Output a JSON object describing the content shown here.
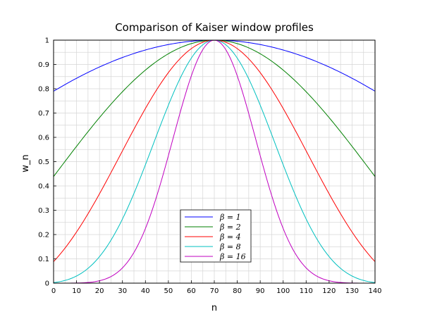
{
  "chart_data": {
    "type": "line",
    "title": "Comparison of Kaiser window profiles",
    "xlabel": "n",
    "ylabel": "w_n",
    "xlim": [
      0,
      140
    ],
    "ylim": [
      0,
      1
    ],
    "x_ticks": [
      "0",
      "10",
      "20",
      "30",
      "40",
      "50",
      "60",
      "70",
      "80",
      "90",
      "100",
      "110",
      "120",
      "130",
      "140"
    ],
    "y_ticks": [
      "0",
      "0.1",
      "0.2",
      "0.3",
      "0.4",
      "0.5",
      "0.6",
      "0.7",
      "0.8",
      "0.9",
      "1"
    ],
    "grid": true,
    "legend_position": "bottom-center",
    "n_points": 141,
    "series": [
      {
        "name": "β = 1",
        "beta": 1,
        "color": "#0000ff"
      },
      {
        "name": "β = 2",
        "beta": 2,
        "color": "#008000"
      },
      {
        "name": "β = 4",
        "beta": 4,
        "color": "#ff0000"
      },
      {
        "name": "β = 8",
        "beta": 8,
        "color": "#00c0c0"
      },
      {
        "name": "β = 16",
        "beta": 16,
        "color": "#c000c0"
      }
    ]
  }
}
